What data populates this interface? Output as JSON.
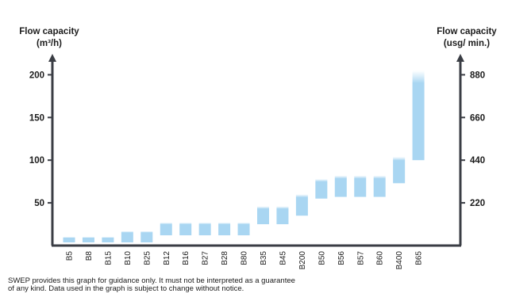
{
  "chart_data": {
    "type": "bar",
    "title": "",
    "y_left_label": [
      "Flow capacity",
      "(m³/h)"
    ],
    "y_right_label": [
      "Flow capacity",
      "(usg/ min.)"
    ],
    "y_left_ticks": [
      50,
      100,
      150,
      200
    ],
    "y_right_ticks": [
      220,
      440,
      660,
      880
    ],
    "ylim": [
      0,
      215
    ],
    "grid": false,
    "legend": "none",
    "bar_color": "#a9d6f2",
    "categories": [
      "B5",
      "B8",
      "B15",
      "B10",
      "B25",
      "B12",
      "B16",
      "B27",
      "B28",
      "B80",
      "B35",
      "B45",
      "B200",
      "B50",
      "B56",
      "B57",
      "B60",
      "B400",
      "B65"
    ],
    "ranges": [
      [
        0,
        10
      ],
      [
        0,
        10
      ],
      [
        0,
        10
      ],
      [
        0,
        17
      ],
      [
        0,
        17
      ],
      [
        12,
        27
      ],
      [
        12,
        27
      ],
      [
        12,
        27
      ],
      [
        12,
        27
      ],
      [
        12,
        27
      ],
      [
        25,
        46
      ],
      [
        25,
        46
      ],
      [
        35,
        60
      ],
      [
        55,
        78
      ],
      [
        57,
        82
      ],
      [
        57,
        82
      ],
      [
        57,
        82
      ],
      [
        73,
        104
      ],
      [
        100,
        205
      ]
    ]
  },
  "footnote": {
    "line1": "SWEP provides this graph for guidance only. It must not be interpreted as a guarantee",
    "line2": "of any kind. Data used in the graph is subject to change without notice."
  }
}
